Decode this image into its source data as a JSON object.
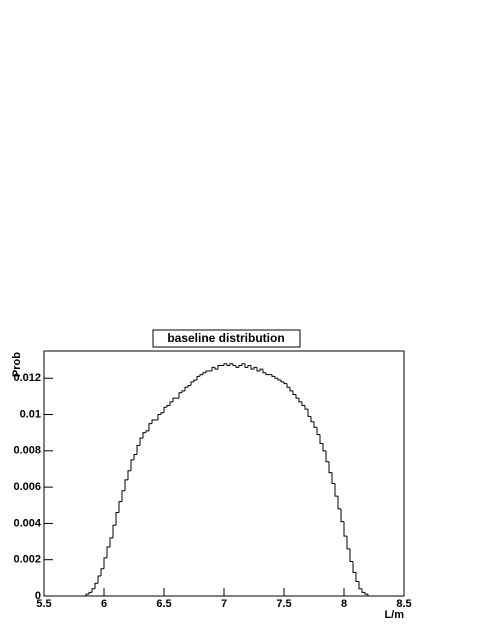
{
  "chart_data": {
    "type": "histogram",
    "title": "baseline distribution",
    "x_label": "L/m",
    "y_label": "Prob",
    "bins": [
      5.5,
      5.525,
      5.55,
      5.575,
      5.6,
      5.625,
      5.65,
      5.675,
      5.7,
      5.725,
      5.75,
      5.775,
      5.8,
      5.825,
      5.85,
      5.875,
      5.9,
      5.925,
      5.95,
      5.975,
      6.0,
      6.025,
      6.05,
      6.075,
      6.1,
      6.125,
      6.15,
      6.175,
      6.2,
      6.225,
      6.25,
      6.275,
      6.3,
      6.325,
      6.35,
      6.375,
      6.4,
      6.425,
      6.45,
      6.475,
      6.5,
      6.525,
      6.55,
      6.575,
      6.6,
      6.625,
      6.65,
      6.675,
      6.7,
      6.725,
      6.75,
      6.775,
      6.8,
      6.825,
      6.85,
      6.875,
      6.9,
      6.925,
      6.95,
      6.975,
      7.0,
      7.025,
      7.05,
      7.075,
      7.1,
      7.125,
      7.15,
      7.175,
      7.2,
      7.225,
      7.25,
      7.275,
      7.3,
      7.325,
      7.35,
      7.375,
      7.4,
      7.425,
      7.45,
      7.475,
      7.5,
      7.525,
      7.55,
      7.575,
      7.6,
      7.625,
      7.65,
      7.675,
      7.7,
      7.725,
      7.75,
      7.775,
      7.8,
      7.825,
      7.85,
      7.875,
      7.9,
      7.925,
      7.95,
      7.975,
      8.0,
      8.025,
      8.05,
      8.075,
      8.1,
      8.125,
      8.15,
      8.175,
      8.2,
      8.225,
      8.25,
      8.275,
      8.3,
      8.325,
      8.35,
      8.375,
      8.4,
      8.425,
      8.45,
      8.475,
      8.5
    ],
    "values": [
      0,
      0,
      0,
      0,
      0,
      0,
      0,
      0,
      0,
      0,
      0,
      0,
      0,
      0,
      0.0001,
      0.0002,
      0.0004,
      0.0007,
      0.0011,
      0.0015,
      0.0021,
      0.0027,
      0.0032,
      0.0039,
      0.0046,
      0.0052,
      0.0058,
      0.0064,
      0.0069,
      0.0075,
      0.0078,
      0.0083,
      0.0087,
      0.009,
      0.0091,
      0.0095,
      0.0097,
      0.0097,
      0.01,
      0.0101,
      0.0104,
      0.0105,
      0.0107,
      0.0109,
      0.0109,
      0.0112,
      0.0113,
      0.0115,
      0.0116,
      0.0118,
      0.0119,
      0.0121,
      0.0122,
      0.0123,
      0.0124,
      0.0124,
      0.0126,
      0.0125,
      0.0127,
      0.0127,
      0.0128,
      0.0127,
      0.0128,
      0.0127,
      0.0126,
      0.0127,
      0.0128,
      0.0126,
      0.0127,
      0.0125,
      0.0126,
      0.0124,
      0.0125,
      0.0123,
      0.0122,
      0.0122,
      0.0121,
      0.012,
      0.0119,
      0.0118,
      0.0117,
      0.0115,
      0.0113,
      0.0111,
      0.0109,
      0.0107,
      0.0105,
      0.0103,
      0.0099,
      0.0096,
      0.0093,
      0.0089,
      0.0084,
      0.008,
      0.0074,
      0.0068,
      0.0062,
      0.0055,
      0.0048,
      0.0041,
      0.0033,
      0.0026,
      0.0019,
      0.0013,
      0.0008,
      0.0004,
      0.0002,
      0.0001,
      0,
      0,
      0,
      0,
      0,
      0,
      0,
      0,
      0,
      0,
      0,
      0
    ],
    "color": "#000000",
    "xlim": [
      5.5,
      8.5
    ],
    "xticks": [
      5.5,
      6,
      6.5,
      7,
      7.5,
      8,
      8.5
    ],
    "ylim": [
      0,
      0.0135
    ],
    "yticks": [
      0,
      0.002,
      0.004,
      0.006,
      0.008,
      0.01,
      0.012
    ]
  }
}
